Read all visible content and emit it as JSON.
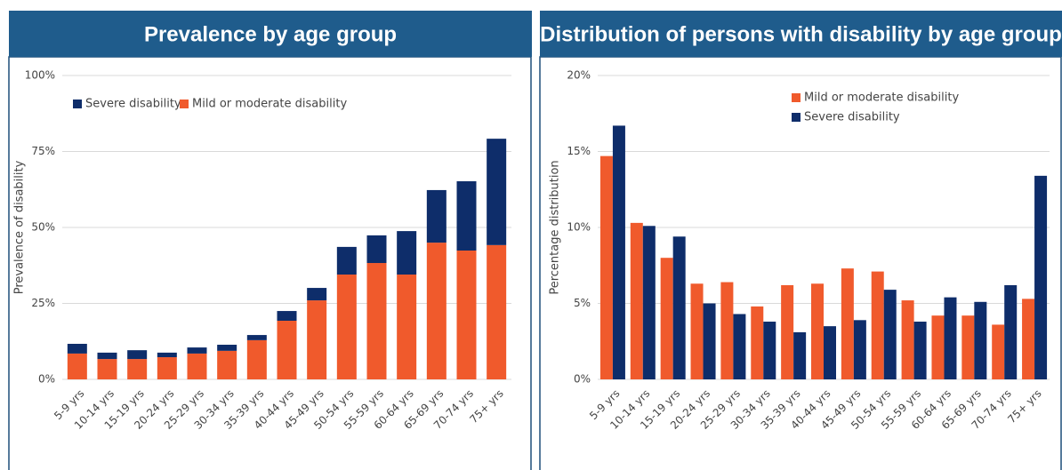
{
  "chart_data": [
    {
      "type": "stacked_bar",
      "title": "Prevalence by age group",
      "ylabel": "Prevalence of disability",
      "categories": [
        "5-9 yrs",
        "10-14 yrs",
        "15-19 yrs",
        "20-24 yrs",
        "25-29 yrs",
        "30-34 yrs",
        "35-39 yrs",
        "40-44 yrs",
        "45-49 yrs",
        "50-54 yrs",
        "55-59 yrs",
        "60-64 yrs",
        "65-69 yrs",
        "70-74 yrs",
        "75+ yrs"
      ],
      "series": [
        {
          "name": "Severe disability",
          "color": "#0e2d6a",
          "values": [
            3.2,
            2.1,
            2.9,
            1.5,
            2.0,
            2.0,
            1.7,
            3.2,
            4.1,
            9.1,
            9.1,
            14.3,
            17.3,
            22.8,
            35.0
          ]
        },
        {
          "name": "Mild or moderate disability",
          "color": "#f05a2c",
          "values": [
            8.5,
            6.7,
            6.7,
            7.3,
            8.5,
            9.4,
            12.9,
            19.3,
            26.0,
            34.5,
            38.3,
            34.5,
            45.0,
            42.4,
            44.2
          ]
        }
      ],
      "ylim": [
        0,
        100
      ],
      "yticks": [
        {
          "value": 0,
          "label": "0%"
        },
        {
          "value": 25,
          "label": "25%"
        },
        {
          "value": 50,
          "label": "50%"
        },
        {
          "value": 75,
          "label": "75%"
        },
        {
          "value": 100,
          "label": "100%"
        }
      ],
      "grid": true,
      "legend": "top-left"
    },
    {
      "type": "bar",
      "title": "Distribution of persons with disability by age group",
      "ylabel": "Percentage distribution",
      "categories": [
        "5-9 yrs",
        "10-14 yrs",
        "15-19 yrs",
        "20-24 yrs",
        "25-29 yrs",
        "30-34 yrs",
        "35-39 yrs",
        "40-44 yrs",
        "45-49 yrs",
        "50-54 yrs",
        "55-59 yrs",
        "60-64 yrs",
        "65-69 yrs",
        "70-74 yrs",
        "75+ yrs"
      ],
      "series": [
        {
          "name": "Mild or moderate disability",
          "color": "#f05a2c",
          "values": [
            14.7,
            10.3,
            8.0,
            6.3,
            6.4,
            4.8,
            6.2,
            6.3,
            7.3,
            7.1,
            5.2,
            4.2,
            4.2,
            3.6,
            5.3
          ]
        },
        {
          "name": "Severe disability",
          "color": "#0e2d6a",
          "values": [
            16.7,
            10.1,
            9.4,
            5.0,
            4.3,
            3.8,
            3.1,
            3.5,
            3.9,
            5.9,
            3.8,
            5.4,
            5.1,
            6.2,
            13.4
          ]
        }
      ],
      "ylim": [
        0,
        20
      ],
      "yticks": [
        {
          "value": 0,
          "label": "0%"
        },
        {
          "value": 5,
          "label": "5%"
        },
        {
          "value": 10,
          "label": "10%"
        },
        {
          "value": 15,
          "label": "15%"
        },
        {
          "value": 20,
          "label": "20%"
        }
      ],
      "grid": true,
      "legend": "top-right"
    }
  ]
}
